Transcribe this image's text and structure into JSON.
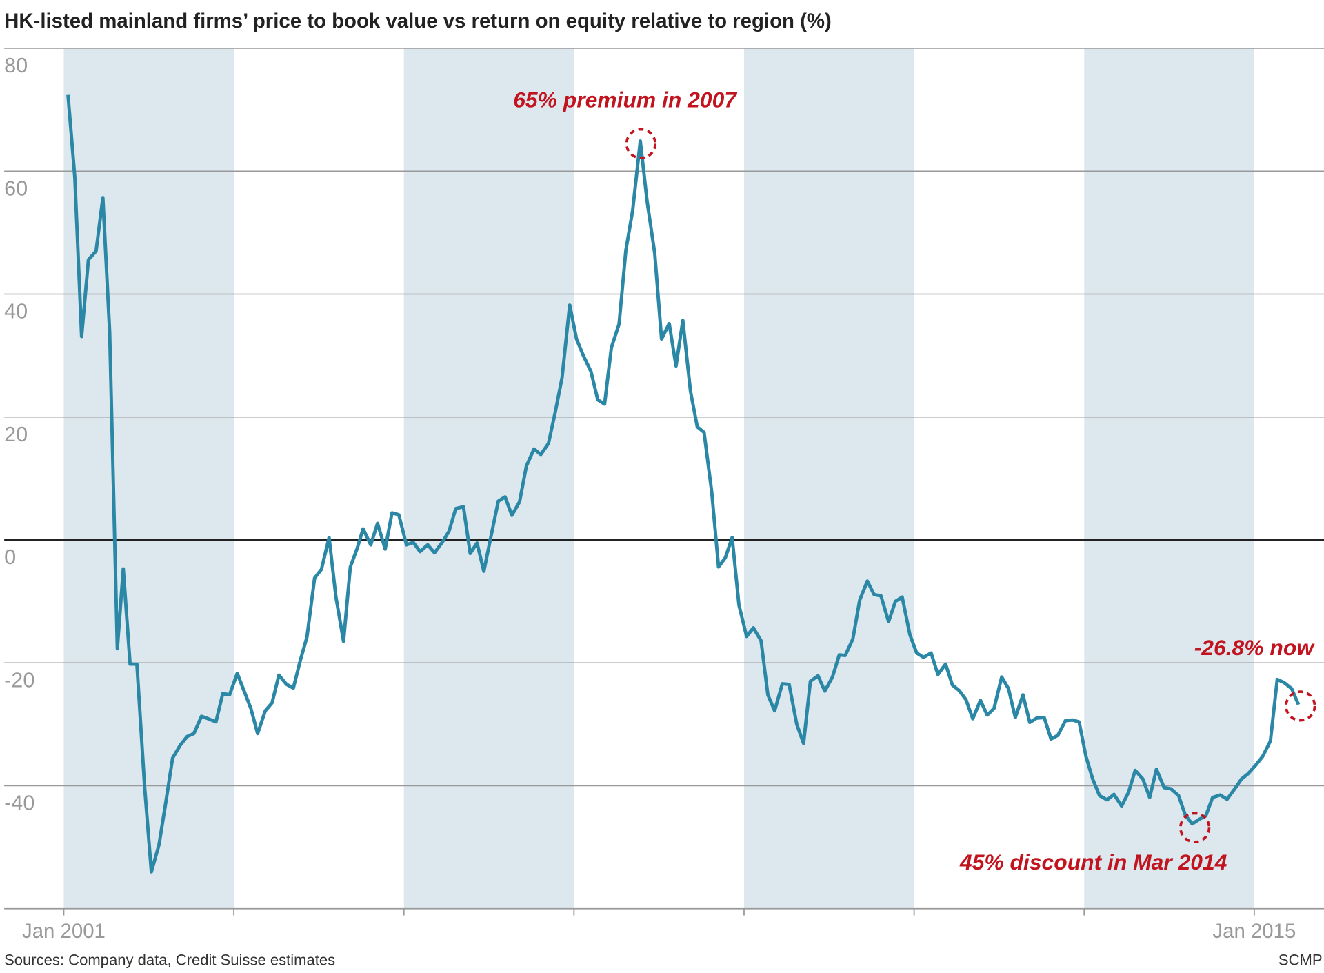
{
  "chart_data": {
    "type": "line",
    "title": "HK-listed mainland firms’ price to book value vs return on equity relative to region (%)",
    "source": "Sources: Company data, Credit Suisse estimates",
    "credit": "SCMP",
    "color": "#2b87a6",
    "band_color": "#dce7ee",
    "shaded_bands": [
      [
        2001,
        2003
      ],
      [
        2005,
        2007
      ],
      [
        2009,
        2011
      ],
      [
        2013,
        2015
      ]
    ],
    "xlim": [
      2000.3,
      2015.82
    ],
    "ylim": [
      -60,
      80
    ],
    "yticks": [
      -40,
      -20,
      0,
      20,
      40,
      60,
      80
    ],
    "xticks": [
      {
        "value": 2001,
        "label": "Jan 2001"
      },
      {
        "value": 2003,
        "label": null
      },
      {
        "value": 2005,
        "label": null
      },
      {
        "value": 2007,
        "label": null
      },
      {
        "value": 2009,
        "label": null
      },
      {
        "value": 2011,
        "label": null
      },
      {
        "value": 2013,
        "label": null
      },
      {
        "value": 2015,
        "label": "Jan 2015"
      }
    ],
    "grid": true,
    "annotations": [
      {
        "text": "65% premium in 2007"
      },
      {
        "text": "-26.8% now"
      },
      {
        "text": "45% discount in Mar 2014"
      }
    ],
    "x": [
      2001.05,
      2001.13,
      2001.21,
      2001.29,
      2001.38,
      2001.46,
      2001.54,
      2001.63,
      2001.7,
      2001.78,
      2001.86,
      2001.95,
      2002.03,
      2002.12,
      2002.2,
      2002.28,
      2002.37,
      2002.45,
      2002.53,
      2002.62,
      2002.7,
      2002.79,
      2002.87,
      2002.95,
      2003.04,
      2003.11,
      2003.2,
      2003.28,
      2003.37,
      2003.45,
      2003.53,
      2003.62,
      2003.7,
      2003.78,
      2003.86,
      2003.95,
      2004.03,
      2004.12,
      2004.2,
      2004.29,
      2004.37,
      2004.45,
      2004.52,
      2004.61,
      2004.69,
      2004.78,
      2004.86,
      2004.94,
      2005.03,
      2005.11,
      2005.19,
      2005.28,
      2005.36,
      2005.45,
      2005.53,
      2005.61,
      2005.7,
      2005.78,
      2005.86,
      2005.94,
      2006.02,
      2006.11,
      2006.19,
      2006.27,
      2006.36,
      2006.44,
      2006.53,
      2006.61,
      2006.7,
      2006.78,
      2006.86,
      2006.95,
      2007.03,
      2007.11,
      2007.2,
      2007.28,
      2007.36,
      2007.44,
      2007.53,
      2007.61,
      2007.69,
      2007.78,
      2007.86,
      2007.95,
      2008.03,
      2008.12,
      2008.2,
      2008.28,
      2008.37,
      2008.45,
      2008.53,
      2008.62,
      2008.7,
      2008.78,
      2008.86,
      2008.94,
      2009.03,
      2009.11,
      2009.2,
      2009.28,
      2009.36,
      2009.45,
      2009.53,
      2009.62,
      2009.7,
      2009.78,
      2009.87,
      2009.95,
      2010.04,
      2010.12,
      2010.19,
      2010.28,
      2010.36,
      2010.45,
      2010.53,
      2010.61,
      2010.7,
      2010.78,
      2010.86,
      2010.95,
      2011.03,
      2011.11,
      2011.2,
      2011.28,
      2011.37,
      2011.45,
      2011.53,
      2011.61,
      2011.69,
      2011.78,
      2011.86,
      2011.94,
      2012.03,
      2012.11,
      2012.19,
      2012.28,
      2012.36,
      2012.44,
      2012.53,
      2012.61,
      2012.69,
      2012.78,
      2012.86,
      2012.94,
      2013.02,
      2013.1,
      2013.18,
      2013.27,
      2013.35,
      2013.44,
      2013.52,
      2013.6,
      2013.69,
      2013.77,
      2013.85,
      2013.94,
      2014.02,
      2014.11,
      2014.19,
      2014.27,
      2014.36,
      2014.43,
      2014.51,
      2014.6,
      2014.68,
      2014.77,
      2014.85,
      2014.93,
      2015.02,
      2015.1,
      2015.19,
      2015.27,
      2015.35,
      2015.44,
      2015.52
    ],
    "values": [
      72.4,
      59,
      33.1,
      45.6,
      47,
      55.7,
      33.8,
      -17.7,
      -4.7,
      -20.2,
      -20.2,
      -40,
      -54,
      -49.6,
      -42.7,
      -35.5,
      -33.4,
      -32,
      -31.5,
      -28.7,
      -29.1,
      -29.6,
      -25,
      -25.2,
      -21.7,
      -24.2,
      -27.4,
      -31.5,
      -27.8,
      -26.5,
      -22,
      -23.5,
      -24.1,
      -19.7,
      -15.8,
      -6.2,
      -4.8,
      0.4,
      -9.2,
      -16.5,
      -4.4,
      -1.4,
      1.8,
      -0.8,
      2.7,
      -1.5,
      4.4,
      4.1,
      -0.8,
      -0.4,
      -1.9,
      -0.8,
      -2.1,
      -0.4,
      1.4,
      5.1,
      5.4,
      -2.2,
      -0.5,
      -5.1,
      0.3,
      6.3,
      7,
      4,
      6.2,
      12,
      14.8,
      13.9,
      15.7,
      20.8,
      26.4,
      38.2,
      32.7,
      30,
      27.4,
      22.8,
      22.1,
      31.3,
      35.1,
      47.1,
      53.6,
      64.9,
      55.1,
      46.6,
      32.7,
      35.2,
      28.3,
      35.7,
      24.2,
      18.4,
      17.5,
      7.8,
      -4.4,
      -2.9,
      0.4,
      -10.6,
      -15.7,
      -14.3,
      -16.4,
      -25.2,
      -27.8,
      -23.4,
      -23.5,
      -30,
      -33.1,
      -23,
      -22.1,
      -24.6,
      -22.3,
      -18.7,
      -18.8,
      -16.1,
      -9.8,
      -6.7,
      -8.9,
      -9.1,
      -13.3,
      -10,
      -9.3,
      -15.4,
      -18.4,
      -19.1,
      -18.4,
      -21.9,
      -20.2,
      -23.6,
      -24.5,
      -26,
      -29.1,
      -26.1,
      -28.5,
      -27.4,
      -22.3,
      -24.2,
      -28.9,
      -25.2,
      -29.7,
      -29,
      -28.9,
      -32.4,
      -31.8,
      -29.4,
      -29.3,
      -29.6,
      -35.2,
      -38.9,
      -41.6,
      -42.3,
      -41.4,
      -43.3,
      -41.1,
      -37.5,
      -38.9,
      -41.9,
      -37.3,
      -40.3,
      -40.5,
      -41.6,
      -44.8,
      -46.2,
      -45.4,
      -44.9,
      -41.9,
      -41.5,
      -42.2,
      -40.5,
      -38.9,
      -38,
      -36.6,
      -35.2,
      -32.7,
      -22.7,
      -23.2,
      -24.2,
      -26.8
    ]
  }
}
